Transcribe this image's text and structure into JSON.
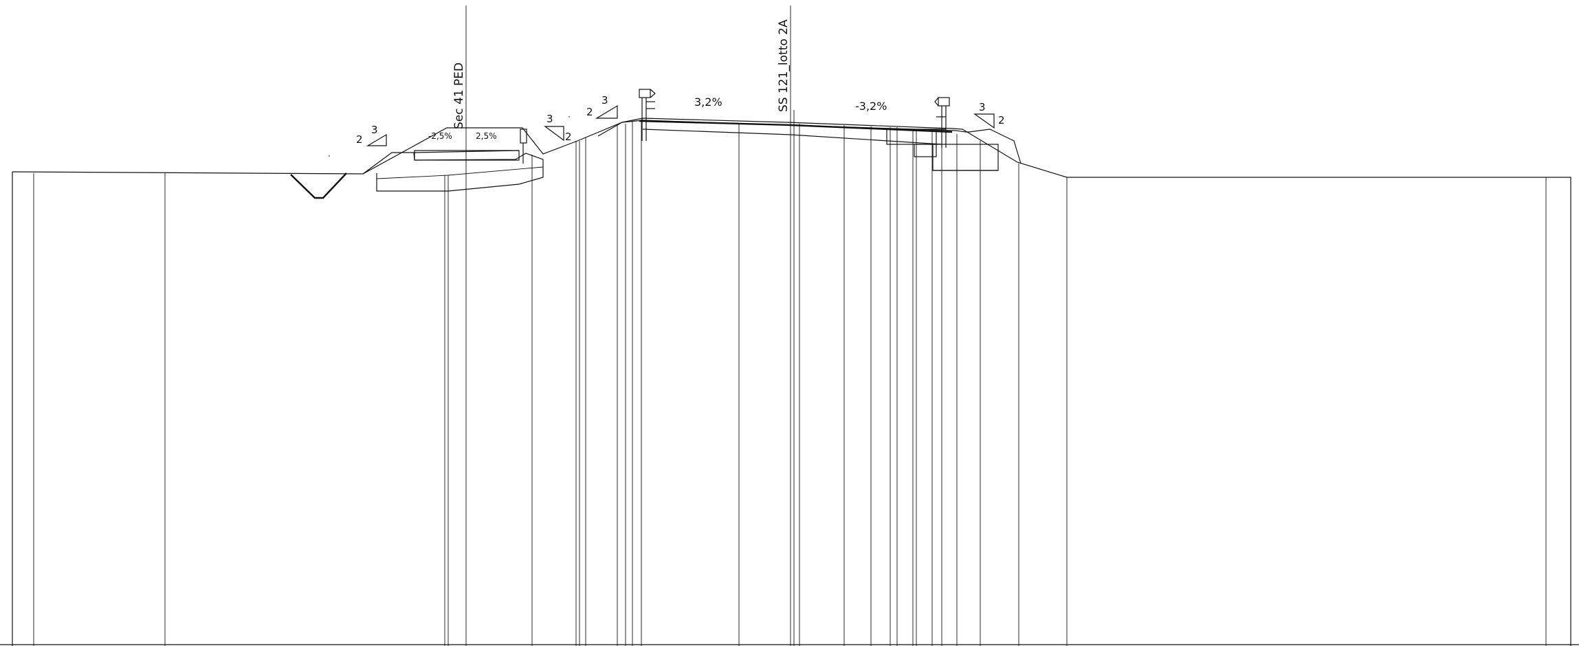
{
  "labels": {
    "section_sec41": "Sec 41 PED",
    "section_ss121": "SS 121_lotto 2A",
    "slope_left_ped": "-2,5%",
    "slope_right_ped": "2,5%",
    "slope_left_road": "3,2%",
    "slope_right_road": "-3,2%"
  },
  "embankment_ratios": [
    {
      "rise": "3",
      "run": "2"
    },
    {
      "rise": "3",
      "run": "2"
    },
    {
      "rise": "3",
      "run": "2"
    },
    {
      "rise": "3",
      "run": "2"
    }
  ],
  "colors": {
    "line": "#111111",
    "background": "#ffffff"
  }
}
